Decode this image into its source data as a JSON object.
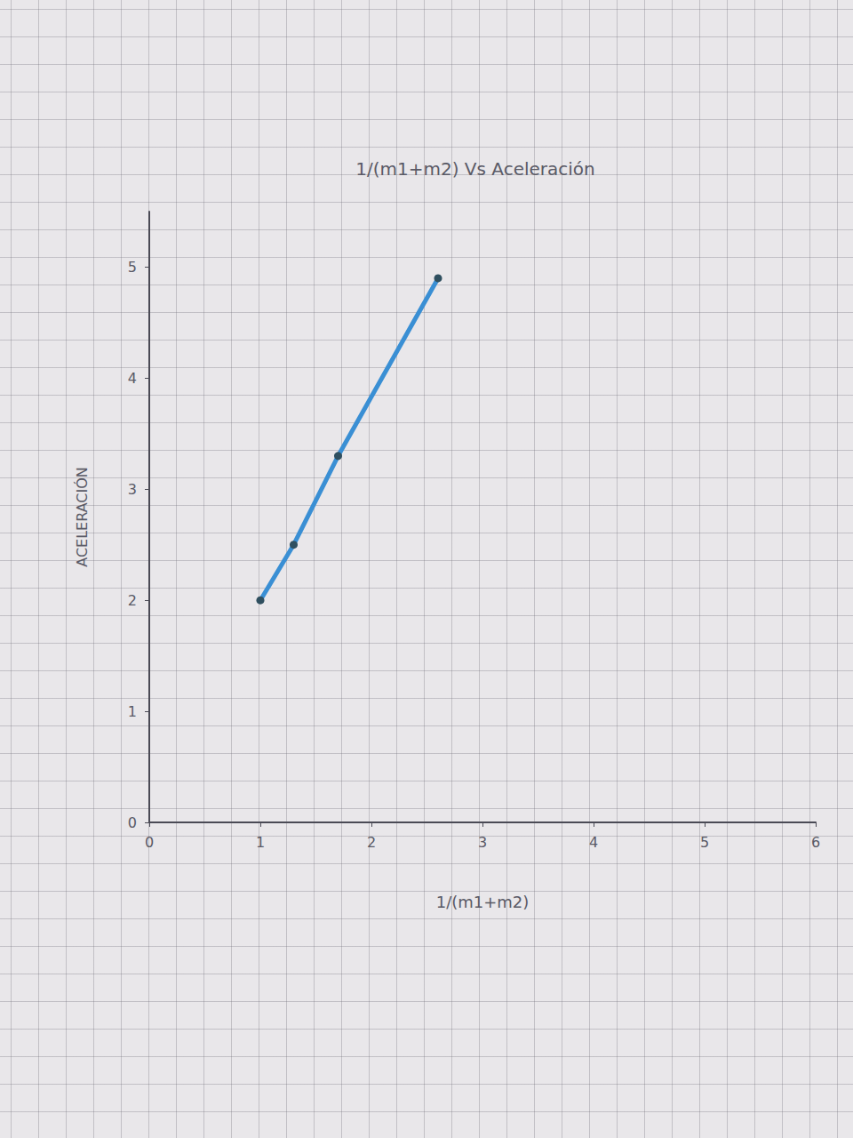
{
  "chart_data": {
    "type": "line",
    "title": "1/(m1+m2) Vs Aceleración",
    "x_label": "1/(m1+m2)",
    "y_label": "ACELERACIÓN",
    "x": [
      1,
      1.3,
      1.7,
      2.6
    ],
    "values": [
      2,
      2.5,
      3.3,
      4.9
    ],
    "color": "#3a8fd4",
    "marker": "circle",
    "xlim": [
      0,
      6
    ],
    "xticks": [
      0,
      1,
      2,
      3,
      4,
      5,
      6
    ],
    "ylim": [
      0,
      5.5
    ],
    "yticks": [
      0,
      1,
      2,
      3,
      4,
      5
    ],
    "grid": false
  }
}
